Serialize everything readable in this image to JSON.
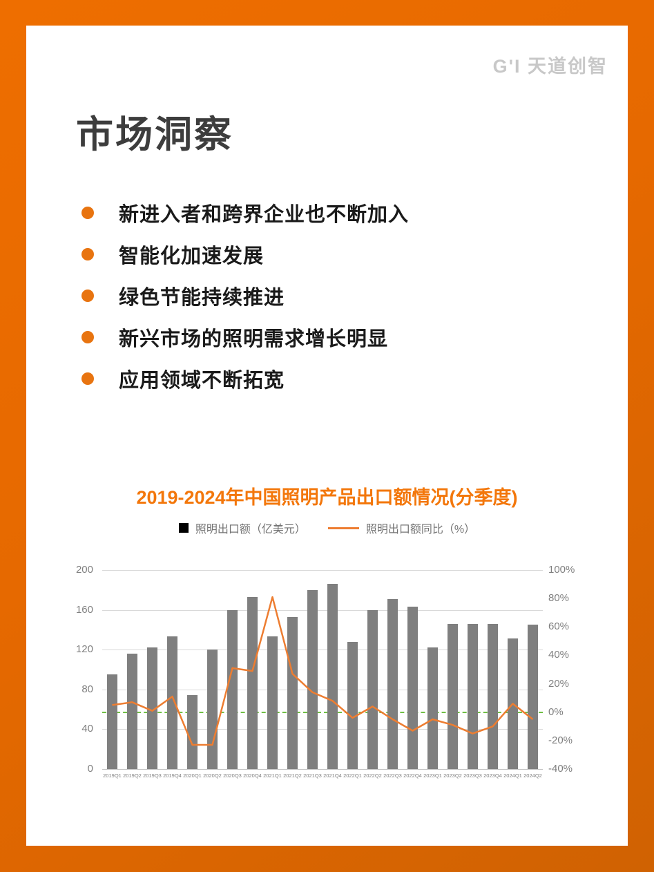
{
  "logo": {
    "text": "G'I 天道创智"
  },
  "page": {
    "title": "市场洞察"
  },
  "bullets": [
    "新进入者和跨界企业也不断加入",
    "智能化加速发展",
    "绿色节能持续推进",
    "新兴市场的照明需求增长明显",
    "应用领域不断拓宽"
  ],
  "colors": {
    "frame_orange": "#EE6E00",
    "frame_orange_dark": "#D06202",
    "bullet_orange": "#E87410",
    "chart_title_orange": "#F3770B",
    "bar_gray": "#7F7F7F",
    "line_orange": "#ED7D31",
    "zero_line_green": "#6FBF44",
    "axis_label_gray": "#7F7F7F",
    "legend_text_gray": "#737373",
    "logo_gray": "#C8C8C8"
  },
  "chart_data": {
    "type": "bar",
    "title": "2019-2024年中国照明产品出口额情况(分季度)",
    "categories": [
      "2019Q1",
      "2019Q2",
      "2019Q3",
      "2019Q4",
      "2020Q1",
      "2020Q2",
      "2020Q3",
      "2020Q4",
      "2021Q1",
      "2021Q2",
      "2021Q3",
      "2021Q4",
      "2022Q1",
      "2022Q2",
      "2022Q3",
      "2022Q4",
      "2023Q1",
      "2023Q2",
      "2023Q3",
      "2023Q4",
      "2024Q1",
      "2024Q2"
    ],
    "series": [
      {
        "name": "照明出口额（亿美元）",
        "type": "bar",
        "axis": "left",
        "color": "#7F7F7F",
        "values": [
          95,
          116,
          122,
          133,
          74,
          120,
          160,
          173,
          133,
          153,
          180,
          186,
          128,
          160,
          171,
          163,
          122,
          146,
          146,
          146,
          131,
          145
        ]
      },
      {
        "name": "照明出口额同比（%）",
        "type": "line",
        "axis": "right",
        "color": "#ED7D31",
        "values": [
          5,
          7,
          1,
          11,
          -23,
          -23,
          31,
          29,
          81,
          27,
          14,
          8,
          -4,
          4,
          -5,
          -13,
          -5,
          -9,
          -15,
          -10,
          6,
          -5
        ]
      }
    ],
    "left_axis": {
      "min": 0,
      "max": 200,
      "ticks": [
        0,
        40,
        80,
        120,
        160,
        200
      ]
    },
    "right_axis": {
      "min": -40,
      "max": 100,
      "ticks": [
        -40,
        -20,
        0,
        20,
        40,
        60,
        80,
        100
      ],
      "suffix": "%"
    },
    "zero_reference_line": {
      "value": 0,
      "style": "dashed",
      "color": "#6FBF44"
    },
    "grid": true,
    "legend_position": "top"
  }
}
